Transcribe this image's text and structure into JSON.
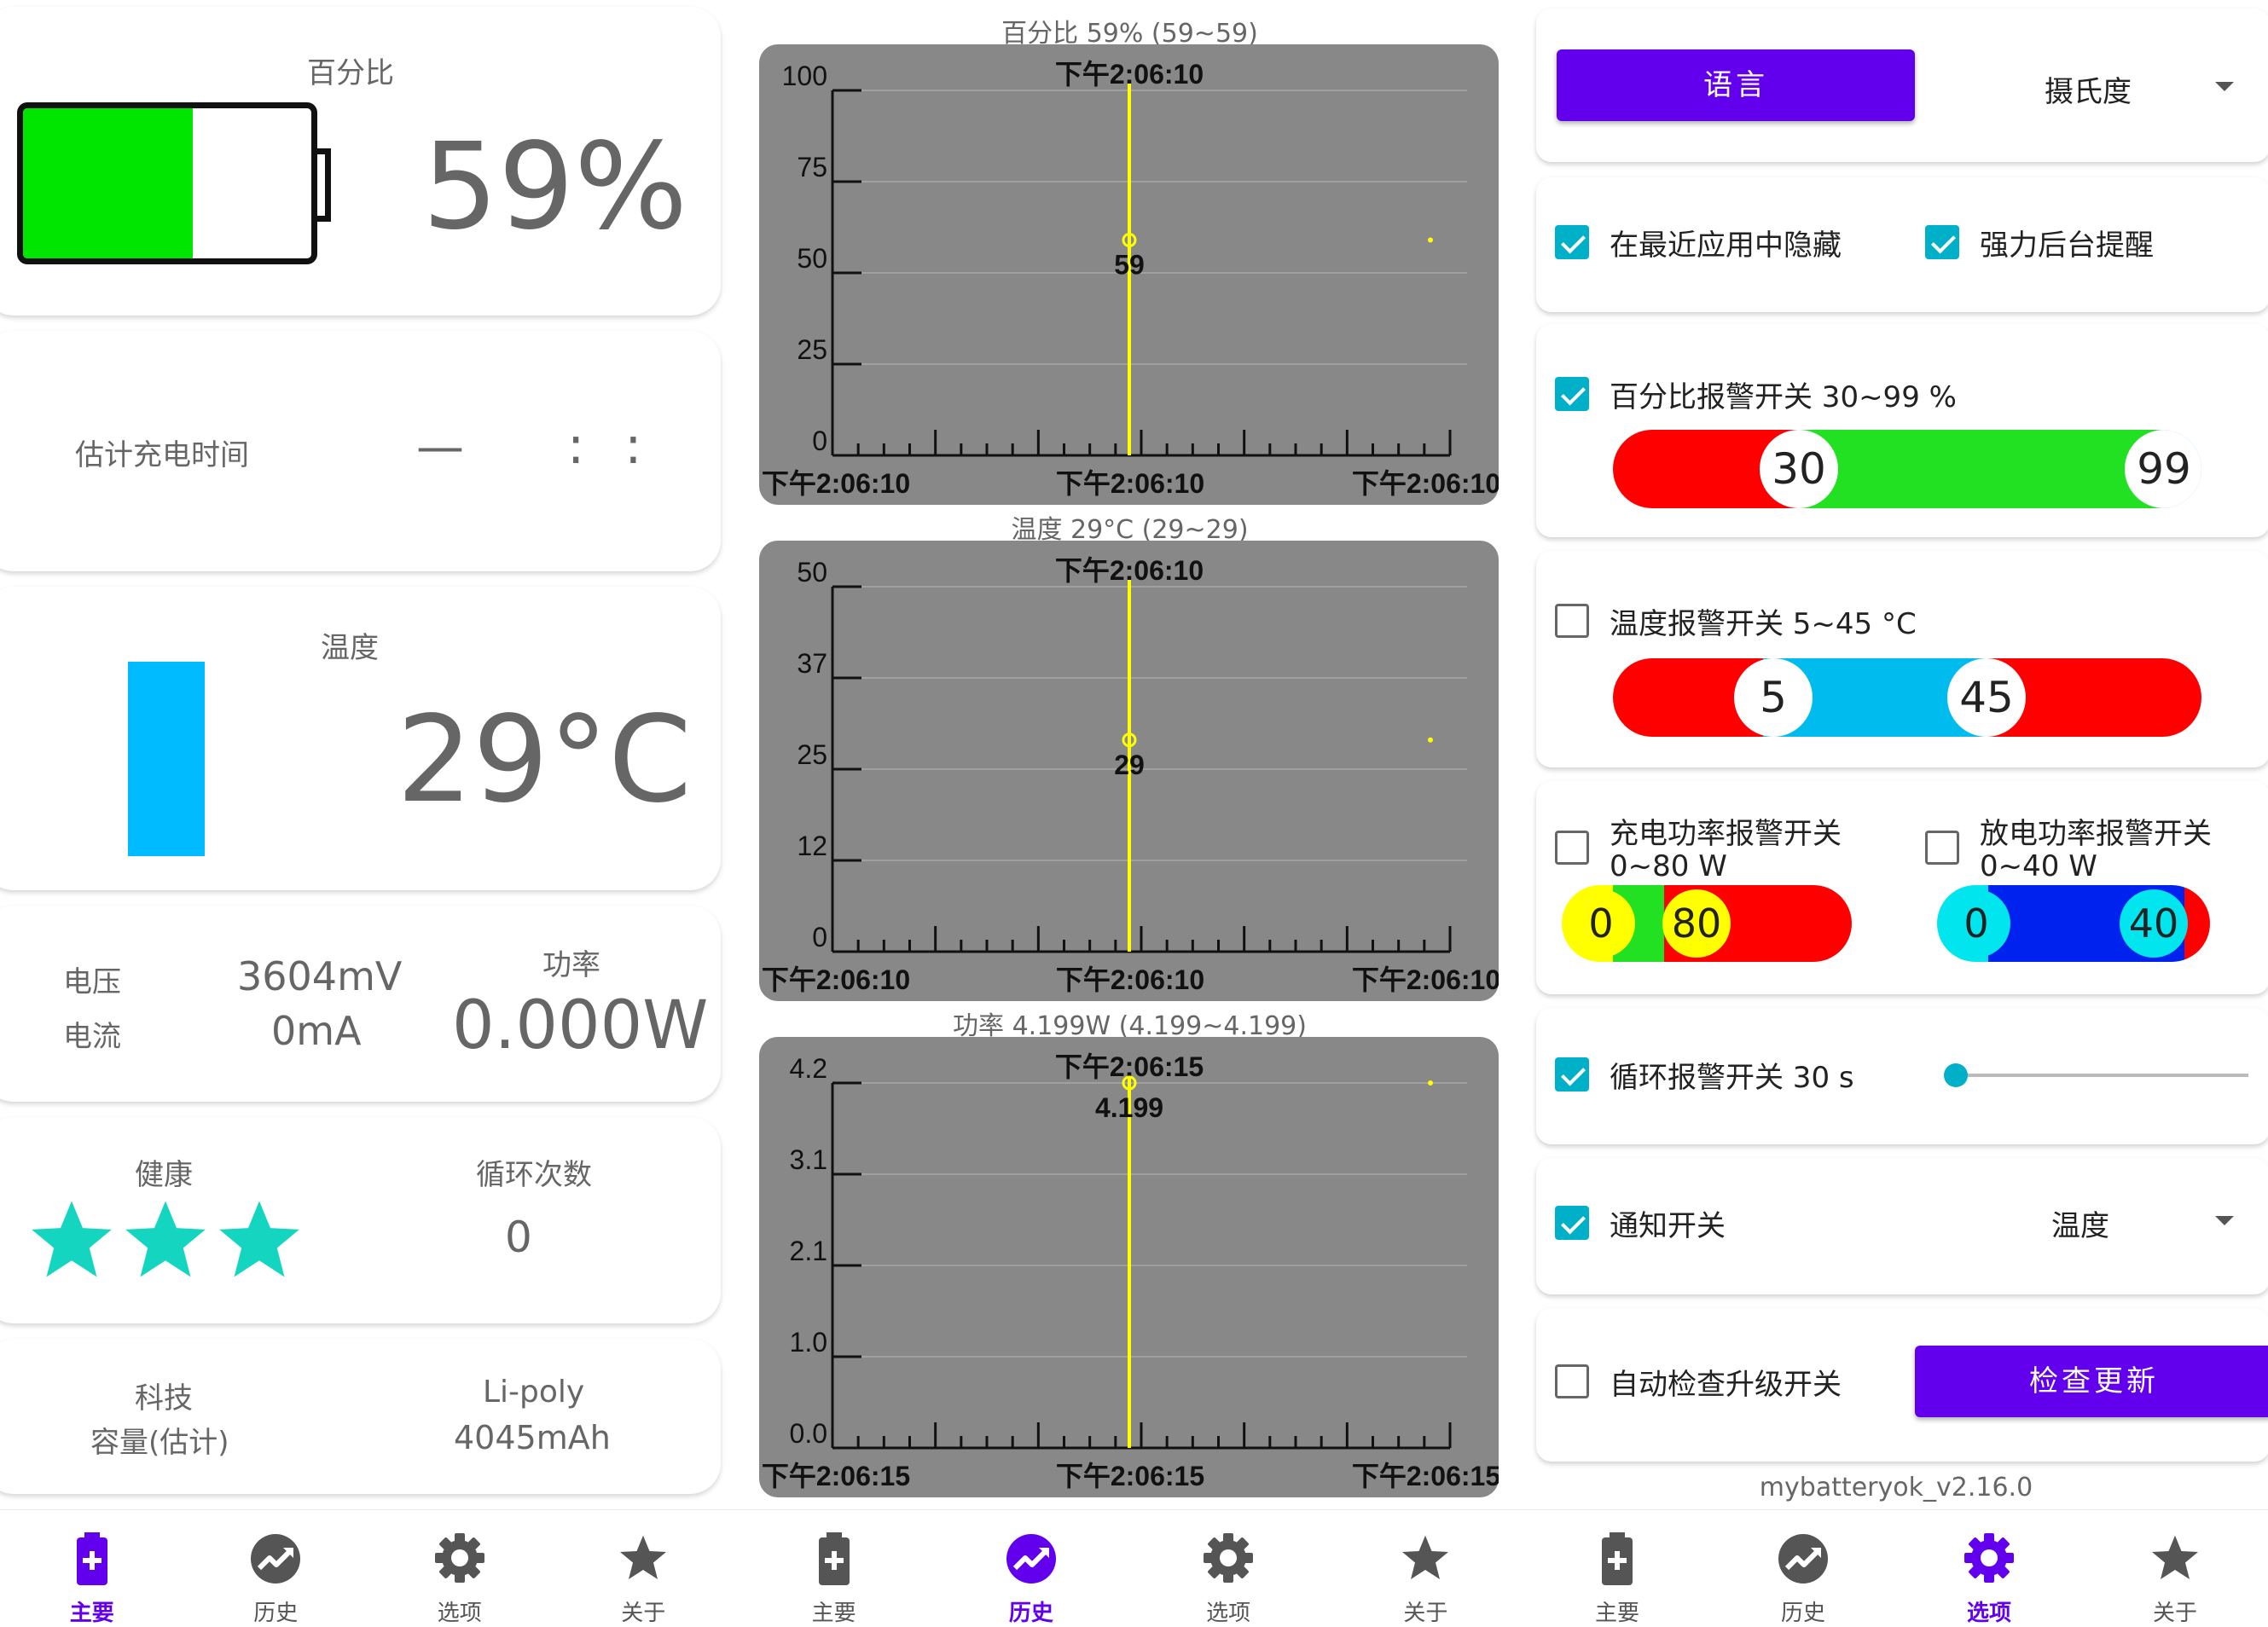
{
  "main": {
    "percent_label": "百分比",
    "percent_value": "59%",
    "battery_level": 0.59,
    "eta_label": "估计充电时间",
    "eta_value": "—",
    "eta_time": ":  :",
    "temp_label": "温度",
    "temp_value": "29°C",
    "voltage_label": "电压",
    "current_label": "电流",
    "voltage_value": "3604mV",
    "current_value": "0mA",
    "power_label": "功率",
    "power_value": "0.000W",
    "health_label": "健康",
    "health_stars": 3,
    "cycles_label": "循环次数",
    "cycles_value": "0",
    "tech_label": "科技",
    "tech_value": "Li-poly",
    "capacity_label": "容量(估计)",
    "capacity_value": "4045mAh",
    "colors": {
      "battery_fill": "#00e600",
      "temp_bar": "#00bbff",
      "stars": "#14d6c0"
    }
  },
  "nav": [
    {
      "label": "主要",
      "icon": "battery-icon"
    },
    {
      "label": "历史",
      "icon": "history-chart-icon"
    },
    {
      "label": "选项",
      "icon": "gear-icon"
    },
    {
      "label": "关于",
      "icon": "star-icon"
    }
  ],
  "history": {
    "charts": [
      {
        "title": "百分比 59% (59~59)",
        "yticks": [
          "100",
          "75",
          "50",
          "25",
          "0"
        ],
        "cursor_time": "下午2:06:10",
        "value_label": "59",
        "value_fraction": 0.59,
        "xlabels": [
          "下午2:06:10",
          "下午2:06:10",
          "下午2:06:10"
        ]
      },
      {
        "title": "温度 29°C (29~29)",
        "yticks": [
          "50",
          "37",
          "25",
          "12",
          "0"
        ],
        "cursor_time": "下午2:06:10",
        "value_label": "29",
        "value_fraction": 0.58,
        "xlabels": [
          "下午2:06:10",
          "下午2:06:10",
          "下午2:06:10"
        ]
      },
      {
        "title": "功率 4.199W (4.199~4.199)",
        "yticks": [
          "4.2",
          "3.1",
          "2.1",
          "1.0",
          "0.0"
        ],
        "cursor_time": "下午2:06:15",
        "value_label": "4.199",
        "value_fraction": 1.0,
        "xlabels": [
          "下午2:06:15",
          "下午2:06:15",
          "下午2:06:15"
        ]
      }
    ],
    "colors": {
      "bg": "#888888",
      "cursor": "#ffff00",
      "grid": "#999999"
    }
  },
  "settings": {
    "language_button": "语言",
    "temp_unit_value": "摄氏度",
    "hide_recent_label": "在最近应用中隐藏",
    "hide_recent_checked": true,
    "force_bg_label": "强力后台提醒",
    "force_bg_checked": true,
    "percent_alarm_label": "百分比报警开关 30~99 %",
    "percent_alarm_checked": true,
    "percent_min": "30",
    "percent_max": "99",
    "temp_alarm_label": "温度报警开关 5~45 °C",
    "temp_alarm_checked": false,
    "temp_min": "5",
    "temp_max": "45",
    "charge_power_label": "充电功率报警开关",
    "charge_power_range": "0~80 W",
    "charge_power_checked": false,
    "charge_min": "0",
    "charge_max": "80",
    "discharge_power_label": "放电功率报警开关",
    "discharge_power_range": "0~40 W",
    "discharge_power_checked": false,
    "discharge_min": "0",
    "discharge_max": "40",
    "loop_alarm_label": "循环报警开关 30 s",
    "loop_alarm_checked": true,
    "loop_slider_value": 0,
    "notify_label": "通知开关",
    "notify_checked": true,
    "notify_value": "温度",
    "auto_update_label": "自动检查升级开关",
    "auto_update_checked": false,
    "check_update_button": "检查更新",
    "version": "mybatteryok_v2.16.0",
    "colors": {
      "primary": "#6200ee",
      "accent": "#00b0c8"
    }
  }
}
